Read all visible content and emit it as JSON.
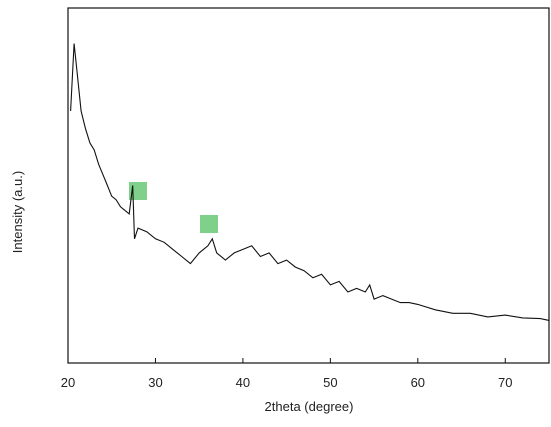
{
  "chart_data": {
    "type": "line",
    "x_label": "2theta (degree)",
    "y_label": "Intensity (a.u.)",
    "xlim": [
      20,
      75
    ],
    "xticks": [
      20,
      30,
      40,
      50,
      60,
      70
    ],
    "ylim": [
      0,
      100
    ],
    "color": "#111111",
    "x": [
      20.3,
      20.7,
      21.0,
      21.5,
      22,
      22.5,
      23,
      23.5,
      24,
      24.5,
      25,
      25.5,
      26,
      26.5,
      27,
      27.4,
      27.6,
      28,
      29,
      30,
      31,
      32,
      33,
      34,
      35,
      36,
      36.5,
      37,
      38,
      39,
      40,
      41,
      42,
      43,
      44,
      45,
      46,
      47,
      48,
      49,
      50,
      51,
      52,
      53,
      54,
      54.5,
      55,
      56,
      57,
      58,
      59,
      60,
      62,
      64,
      66,
      68,
      70,
      72,
      74,
      75
    ],
    "values": [
      71,
      90,
      83,
      71,
      66,
      62,
      60,
      56,
      53,
      50,
      47,
      46,
      44,
      43,
      42,
      50,
      35,
      38,
      37,
      35,
      34,
      32,
      30,
      28,
      31,
      33,
      35,
      31,
      29,
      31,
      32,
      33,
      30,
      31,
      28,
      29,
      27,
      26,
      24,
      25,
      22,
      23,
      20,
      21,
      20,
      22,
      18,
      19,
      18,
      17,
      17,
      16.5,
      15,
      14,
      14,
      13,
      13.5,
      12.7,
      12.5,
      12
    ]
  }
}
